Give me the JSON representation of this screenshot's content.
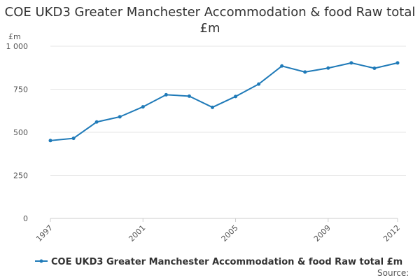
{
  "chart_data": {
    "type": "line",
    "title": "COE UKD3 Greater Manchester Accommodation & food Raw total £m",
    "ylabel": "£m",
    "xlabel": "",
    "x": [
      1997,
      1998,
      1999,
      2000,
      2001,
      2002,
      2003,
      2004,
      2005,
      2006,
      2007,
      2008,
      2009,
      2010,
      2011,
      2012
    ],
    "x_tick_labels": [
      "1997",
      "2001",
      "2005",
      "2009",
      "2012"
    ],
    "y_tick_labels": [
      "0",
      "250",
      "500",
      "750",
      "1 000"
    ],
    "ylim": [
      0,
      1000
    ],
    "grid": true,
    "series": [
      {
        "name": "COE UKD3 Greater Manchester Accommodation & food Raw total £m",
        "color": "#1f7ab8",
        "values": [
          452,
          465,
          560,
          590,
          648,
          718,
          710,
          645,
          708,
          780,
          885,
          850,
          873,
          903,
          872,
          903
        ]
      }
    ],
    "legend_position": "bottom",
    "source_label": "Source:"
  }
}
